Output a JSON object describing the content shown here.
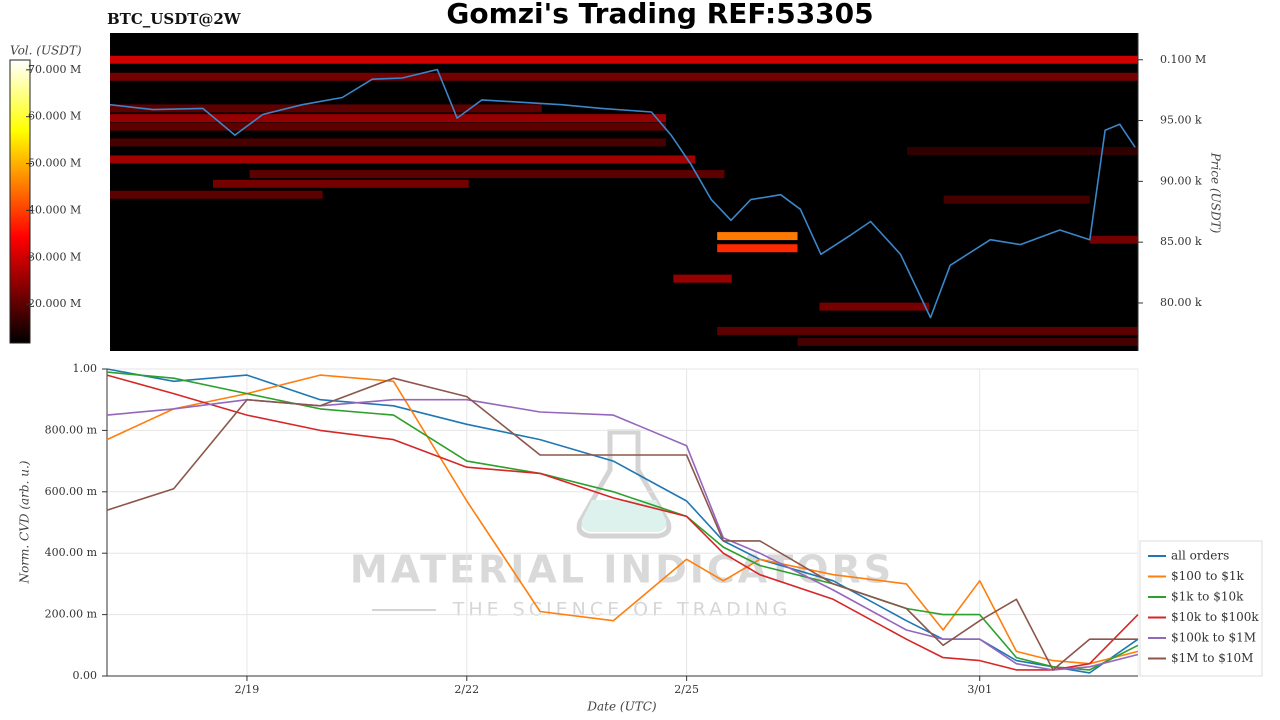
{
  "chart_data": [
    {
      "type": "heatmap",
      "title": "Gomzi's Trading REF:53305",
      "subtitle": "BTC_USDT@2W",
      "y_label": "Price (USDT)",
      "y_axis_side": "right",
      "xlim": [
        0.09,
        14.16
      ],
      "ylim": [
        76050,
        102200
      ],
      "yticks": [
        {
          "value": 100000,
          "label": "0.100 M"
        },
        {
          "value": 95000,
          "label": "95.00 k"
        },
        {
          "value": 90000,
          "label": "90.00 k"
        },
        {
          "value": 85000,
          "label": "85.00 k"
        },
        {
          "value": 80000,
          "label": "80.00 k"
        }
      ],
      "colorbar": {
        "label": "Vol. (USDT)",
        "colormap": "hot",
        "lim": [
          11700000,
          72100000
        ],
        "ticks": [
          {
            "value": 70000000,
            "label": "70.000 M"
          },
          {
            "value": 60000000,
            "label": "60.000 M"
          },
          {
            "value": 50000000,
            "label": "50.000 M"
          },
          {
            "value": 40000000,
            "label": "40.000 M"
          },
          {
            "value": 30000000,
            "label": "30.000 M"
          },
          {
            "value": 20000000,
            "label": "20.000 M"
          }
        ]
      },
      "bands": [
        {
          "price": 100000,
          "start": 0.09,
          "end": 14.16,
          "volume": 30000000
        },
        {
          "price": 98600,
          "start": 0.09,
          "end": 14.16,
          "volume": 22000000
        },
        {
          "price": 96000,
          "start": 0.09,
          "end": 6,
          "volume": 20000000
        },
        {
          "price": 95200,
          "start": 0.09,
          "end": 7.7,
          "volume": 25000000
        },
        {
          "price": 94500,
          "start": 0.09,
          "end": 7.7,
          "volume": 20000000
        },
        {
          "price": 93200,
          "start": 0.09,
          "end": 7.7,
          "volume": 18000000
        },
        {
          "price": 92500,
          "start": 11,
          "end": 14.16,
          "volume": 16000000
        },
        {
          "price": 91800,
          "start": 0.09,
          "end": 8.1,
          "volume": 26000000
        },
        {
          "price": 90600,
          "start": 2,
          "end": 8.5,
          "volume": 20000000
        },
        {
          "price": 89800,
          "start": 1.5,
          "end": 5,
          "volume": 22000000
        },
        {
          "price": 88900,
          "start": 0.09,
          "end": 3,
          "volume": 20000000
        },
        {
          "price": 88500,
          "start": 11.5,
          "end": 13.5,
          "volume": 18000000
        },
        {
          "price": 85500,
          "start": 8.4,
          "end": 9.5,
          "volume": 45000000
        },
        {
          "price": 84500,
          "start": 8.4,
          "end": 9.5,
          "volume": 38000000
        },
        {
          "price": 85200,
          "start": 13.5,
          "end": 14.16,
          "volume": 22000000
        },
        {
          "price": 82000,
          "start": 7.8,
          "end": 8.6,
          "volume": 25000000
        },
        {
          "price": 79700,
          "start": 9.8,
          "end": 11.3,
          "volume": 22000000
        },
        {
          "price": 77700,
          "start": 8.4,
          "end": 14.16,
          "volume": 20000000
        },
        {
          "price": 76800,
          "start": 9.5,
          "end": 14.16,
          "volume": 18000000
        }
      ],
      "series": [
        {
          "color": "#3a86c8",
          "x": [
            0.09,
            0.68,
            1.36,
            1.8,
            2.18,
            2.72,
            3.27,
            3.68,
            4.09,
            4.57,
            4.84,
            5.18,
            5.73,
            6.27,
            6.82,
            7.5,
            7.77,
            8.04,
            8.32,
            8.59,
            8.86,
            9.27,
            9.54,
            9.82,
            10.23,
            10.5,
            10.91,
            11.32,
            11.59,
            12.14,
            12.55,
            13.09,
            13.5,
            13.71,
            13.91,
            14.12
          ],
          "values": [
            96300,
            95900,
            96000,
            93800,
            95500,
            96300,
            96900,
            98400,
            98500,
            99200,
            95200,
            96700,
            96500,
            96300,
            96000,
            95700,
            93800,
            91400,
            88500,
            86800,
            88500,
            88900,
            87700,
            84000,
            85600,
            86700,
            84000,
            78800,
            83100,
            85200,
            84800,
            86000,
            85200,
            94200,
            94700,
            92800
          ]
        }
      ]
    },
    {
      "type": "line",
      "y_label": "Norm. CVD (arb. u.)",
      "x_label": "Date (UTC)",
      "watermark": [
        "MATERIAL INDICATORS",
        "THE SCIENCE OF TRADING"
      ],
      "grid": true,
      "legend": "right",
      "xlim": [
        0.09,
        14.16
      ],
      "xticks": [
        {
          "value": 2,
          "label": "2/19"
        },
        {
          "value": 5,
          "label": "2/22"
        },
        {
          "value": 8,
          "label": "2/25"
        },
        {
          "value": 12,
          "label": "3/01"
        }
      ],
      "ylim": [
        0,
        1
      ],
      "yticks": [
        {
          "value": 0,
          "label": "0.00"
        },
        {
          "value": 0.2,
          "label": "200.00 m"
        },
        {
          "value": 0.4,
          "label": "400.00 m"
        },
        {
          "value": 0.6,
          "label": "600.00 m"
        },
        {
          "value": 0.8,
          "label": "800.00 m"
        },
        {
          "value": 1,
          "label": "1.00"
        }
      ],
      "x": [
        0.09,
        1,
        2,
        3,
        4,
        5,
        6,
        7,
        8,
        8.5,
        9,
        10,
        11,
        11.5,
        12,
        12.5,
        13,
        13.5,
        14.16
      ],
      "series": [
        {
          "name": "all orders",
          "color": "#1f77b4",
          "values": [
            1.0,
            0.96,
            0.98,
            0.9,
            0.88,
            0.82,
            0.77,
            0.7,
            0.57,
            0.44,
            0.38,
            0.31,
            0.18,
            0.12,
            0.12,
            0.05,
            0.03,
            0.01,
            0.12
          ]
        },
        {
          "name": "$100 to $1k",
          "color": "#ff7f0e",
          "values": [
            0.77,
            0.87,
            0.92,
            0.98,
            0.96,
            0.57,
            0.21,
            0.18,
            0.38,
            0.31,
            0.38,
            0.33,
            0.3,
            0.15,
            0.31,
            0.08,
            0.05,
            0.04,
            0.08
          ]
        },
        {
          "name": "$1k to $10k",
          "color": "#2ca02c",
          "values": [
            0.99,
            0.97,
            0.92,
            0.87,
            0.85,
            0.7,
            0.66,
            0.6,
            0.52,
            0.42,
            0.36,
            0.3,
            0.22,
            0.2,
            0.2,
            0.06,
            0.03,
            0.02,
            0.1
          ]
        },
        {
          "name": "$10k to $100k",
          "color": "#d62728",
          "values": [
            0.98,
            0.92,
            0.85,
            0.8,
            0.77,
            0.68,
            0.66,
            0.58,
            0.52,
            0.4,
            0.33,
            0.25,
            0.12,
            0.06,
            0.05,
            0.02,
            0.02,
            0.04,
            0.2
          ]
        },
        {
          "name": "$100k to $1M",
          "color": "#9467bd",
          "values": [
            0.85,
            0.87,
            0.9,
            0.88,
            0.9,
            0.9,
            0.86,
            0.85,
            0.75,
            0.45,
            0.4,
            0.28,
            0.15,
            0.12,
            0.12,
            0.04,
            0.02,
            0.03,
            0.07
          ]
        },
        {
          "name": "$1M to $10M",
          "color": "#8c564b",
          "values": [
            0.54,
            0.61,
            0.9,
            0.88,
            0.97,
            0.91,
            0.72,
            0.72,
            0.72,
            0.44,
            0.44,
            0.3,
            0.22,
            0.1,
            0.18,
            0.25,
            0.02,
            0.12,
            0.12
          ]
        }
      ]
    }
  ]
}
